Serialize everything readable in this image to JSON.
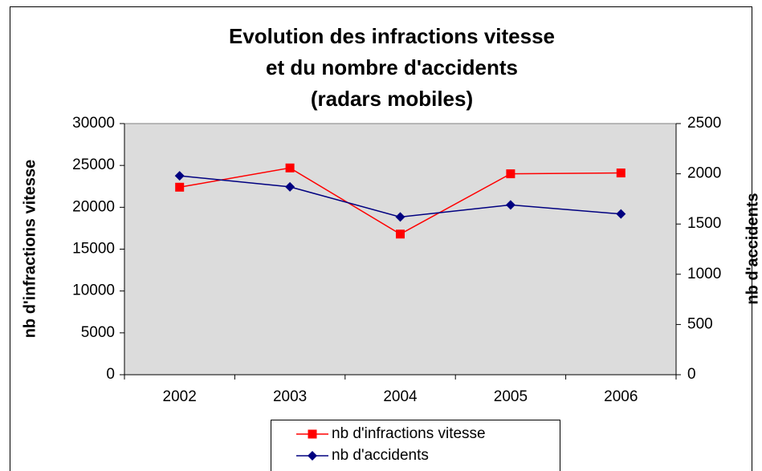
{
  "chart_data": {
    "type": "line",
    "title": [
      "Evolution des infractions vitesse",
      "et du nombre d'accidents",
      "(radars mobiles)"
    ],
    "y_label": "nb d'infractions vitesse",
    "y2_label": "nb d'accidents",
    "categories": [
      "2002",
      "2003",
      "2004",
      "2005",
      "2006"
    ],
    "series": [
      {
        "name": "nb d'infractions vitesse",
        "color": "#ff0000",
        "marker": "square",
        "values": [
          22400,
          24700,
          16800,
          24000,
          24100
        ]
      },
      {
        "name": "nb d'accidents",
        "color": "#000080",
        "marker": "diamond",
        "axis": "y2",
        "values": [
          1980,
          1870,
          1570,
          1690,
          1600
        ]
      }
    ],
    "ylim": [
      0,
      30000
    ],
    "yticks": [
      0,
      5000,
      10000,
      15000,
      20000,
      25000,
      30000
    ],
    "y2lim": [
      0,
      2500
    ],
    "y2ticks": [
      0,
      500,
      1000,
      1500,
      2000,
      2500
    ],
    "grid": false,
    "plot_background": "#dcdcdc",
    "legend": "bottom"
  }
}
